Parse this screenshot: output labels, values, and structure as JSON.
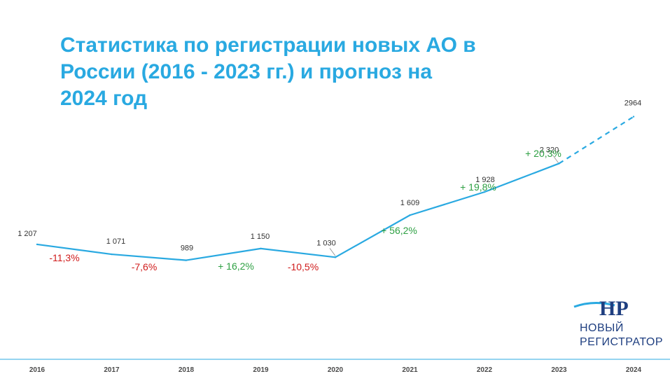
{
  "title_lines": [
    "Статистика по регистрации новых АО в",
    "России (2016 - 2023 гг.) и прогноз на",
    "2024 год"
  ],
  "logo": {
    "mark": "HP",
    "line1": "НОВЫЙ",
    "line2": "РЕГИСТРАТОР"
  },
  "colors": {
    "line": "#29a9e1",
    "title": "#29a9e1",
    "negative": "#d01c1c",
    "positive": "#2ea043",
    "axis": "#29a9e1",
    "logo": "#1f3f80"
  },
  "chart_data": {
    "type": "line",
    "x": [
      "2016",
      "2017",
      "2018",
      "2019",
      "2020",
      "2021",
      "2022",
      "2023",
      "2024"
    ],
    "values": [
      1207,
      1071,
      989,
      1150,
      1030,
      1609,
      1928,
      2320,
      2964
    ],
    "value_labels": [
      "1 207",
      "1 071",
      "989",
      "1 150",
      "1 030",
      "1 609",
      "1 928",
      "2 320",
      "2964"
    ],
    "forecast_from_index": 7,
    "changes": [
      {
        "label": "-11,3%",
        "sign": "negative",
        "between": [
          0,
          1
        ]
      },
      {
        "label": "-7,6%",
        "sign": "negative",
        "between": [
          1,
          2
        ]
      },
      {
        "label": "+ 16,2%",
        "sign": "positive",
        "between": [
          2,
          3
        ]
      },
      {
        "label": "-10,5%",
        "sign": "negative",
        "between": [
          3,
          4
        ]
      },
      {
        "label": "+ 56,2%",
        "sign": "positive",
        "between": [
          4,
          5
        ]
      },
      {
        "label": "+ 19,8%",
        "sign": "positive",
        "between": [
          5,
          6
        ]
      },
      {
        "label": "+ 20,3%",
        "sign": "positive",
        "between": [
          6,
          7
        ]
      }
    ],
    "grid": false,
    "legend": "none"
  }
}
